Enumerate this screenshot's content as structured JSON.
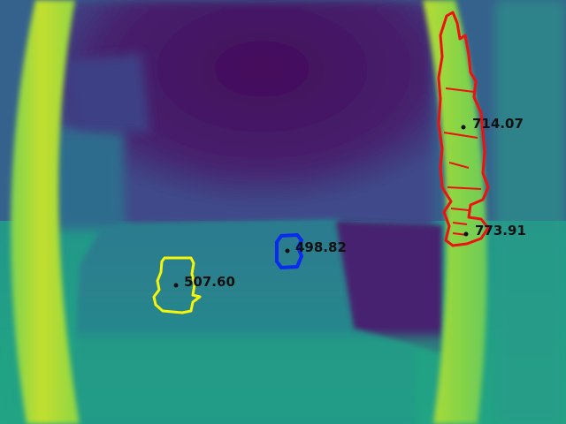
{
  "image": {
    "kind": "depth-map",
    "colormap": "viridis",
    "colors": {
      "far": "#44105e",
      "mid_far": "#3b3f8a",
      "mid": "#2a8c8c",
      "near": "#38b77a",
      "nearest": "#c6df2e"
    }
  },
  "measurements": [
    {
      "id": "yellow-region",
      "value": "507.60",
      "color": "#f5f50a"
    },
    {
      "id": "blue-region",
      "value": "498.82",
      "color": "#0a2af0"
    },
    {
      "id": "red-region-upper",
      "value": "714.07",
      "color": "#ee1111"
    },
    {
      "id": "red-region-lower",
      "value": "773.91",
      "color": "#ee1111"
    }
  ]
}
